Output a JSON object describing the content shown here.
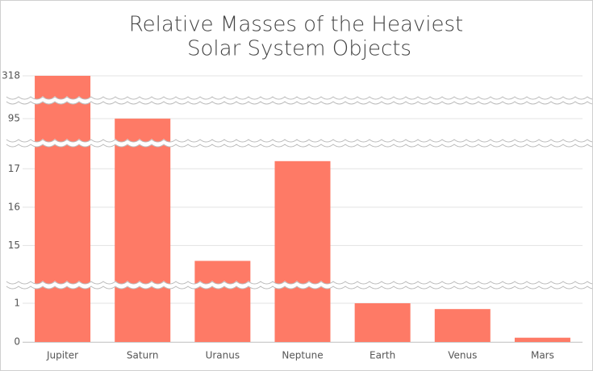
{
  "chart_data": {
    "type": "bar",
    "title": [
      "Relative Masses of the Heaviest",
      "Solar System Objects"
    ],
    "categories": [
      "Jupiter",
      "Saturn",
      "Uranus",
      "Neptune",
      "Earth",
      "Venus",
      "Mars"
    ],
    "values": [
      318,
      95,
      14.6,
      17.2,
      1,
      0.85,
      0.11
    ],
    "color": "#fe7a66",
    "ylim": [
      0,
      318
    ],
    "scale_breaks": [
      [
        1.5,
        14
      ],
      [
        17.7,
        94.4
      ],
      [
        95.5,
        317.6
      ]
    ],
    "yticks": [
      0,
      1,
      15,
      16,
      17,
      95,
      318
    ],
    "grid": true
  }
}
